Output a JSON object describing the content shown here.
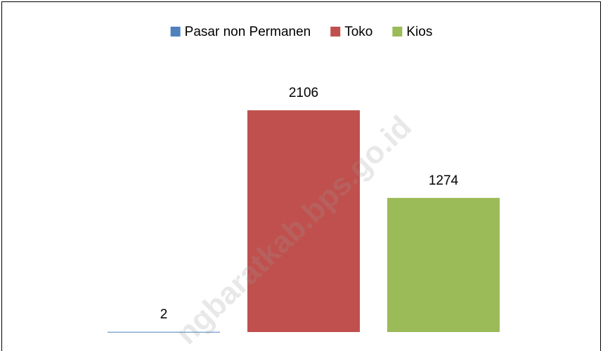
{
  "chart_data": {
    "type": "bar",
    "series": [
      {
        "name": "Pasar non Permanen",
        "color": "#4f81bd",
        "values": [
          2
        ]
      },
      {
        "name": "Toko",
        "color": "#c0504d",
        "values": [
          2106
        ]
      },
      {
        "name": "Kios",
        "color": "#9bbb59",
        "values": [
          1274
        ]
      }
    ],
    "ylim": [
      0,
      2500
    ],
    "legend": "top",
    "watermark": "ngbaratkab.bps.go.id"
  }
}
